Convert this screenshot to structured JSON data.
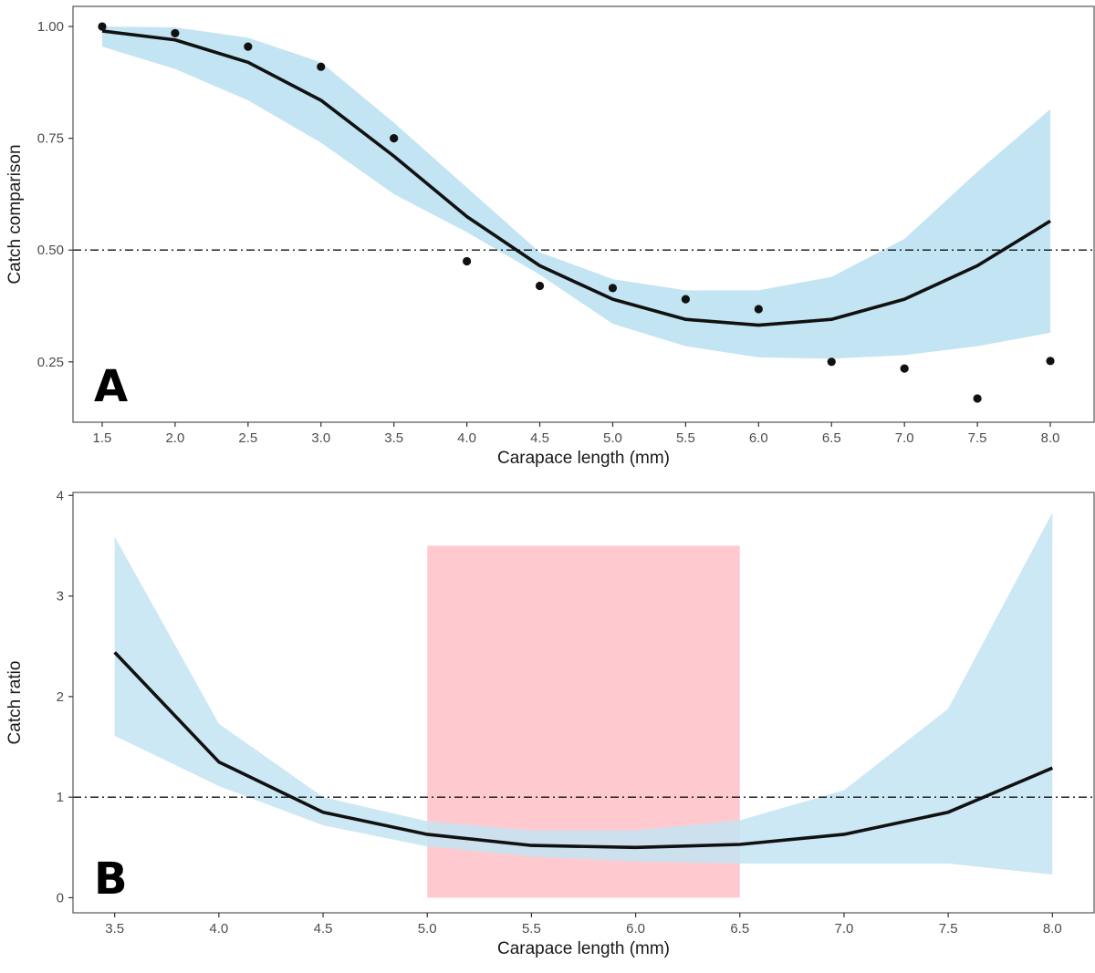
{
  "colors": {
    "ribbon": "#c3e4f2",
    "line": "#111111",
    "points": "#111111",
    "highlight": "#ffb6bd",
    "refline": "#111111",
    "frame": "#555555"
  },
  "chart_data": [
    {
      "type": "line",
      "panel_tag": "A",
      "xlabel": "Carapace length (mm)",
      "ylabel": "Catch comparison",
      "xlim": [
        1.3,
        8.3
      ],
      "ylim": [
        0.115,
        1.045
      ],
      "xticks": [
        1.5,
        2.0,
        2.5,
        3.0,
        3.5,
        4.0,
        4.5,
        5.0,
        5.5,
        6.0,
        6.5,
        7.0,
        7.5,
        8.0
      ],
      "yticks": [
        0.25,
        0.5,
        0.75,
        1.0
      ],
      "xtick_labels": [
        "1.5",
        "2.0",
        "2.5",
        "3.0",
        "3.5",
        "4.0",
        "4.5",
        "5.0",
        "5.5",
        "6.0",
        "6.5",
        "7.0",
        "7.5",
        "8.0"
      ],
      "ytick_labels": [
        "0.25",
        "0.50",
        "0.75",
        "1.00"
      ],
      "reference_line": 0.5,
      "x": [
        1.5,
        2.0,
        2.5,
        3.0,
        3.5,
        4.0,
        4.5,
        5.0,
        5.5,
        6.0,
        6.5,
        7.0,
        7.5,
        8.0
      ],
      "fit": [
        0.99,
        0.97,
        0.92,
        0.835,
        0.71,
        0.575,
        0.465,
        0.39,
        0.345,
        0.332,
        0.345,
        0.39,
        0.465,
        0.565
      ],
      "ci_lower": [
        0.955,
        0.905,
        0.835,
        0.74,
        0.625,
        0.54,
        0.445,
        0.335,
        0.285,
        0.26,
        0.257,
        0.265,
        0.285,
        0.315
      ],
      "ci_upper": [
        1.0,
        0.998,
        0.975,
        0.92,
        0.785,
        0.64,
        0.495,
        0.435,
        0.41,
        0.41,
        0.44,
        0.525,
        0.675,
        0.815
      ],
      "observed": [
        1.0,
        0.985,
        0.955,
        0.91,
        0.75,
        0.475,
        0.42,
        0.415,
        0.39,
        0.368,
        0.25,
        0.235,
        0.168,
        0.252
      ]
    },
    {
      "type": "line",
      "panel_tag": "B",
      "xlabel": "Carapace length (mm)",
      "ylabel": "Catch ratio",
      "xlim": [
        3.3,
        8.2
      ],
      "ylim": [
        -0.15,
        4.03
      ],
      "xticks": [
        3.5,
        4.0,
        4.5,
        5.0,
        5.5,
        6.0,
        6.5,
        7.0,
        7.5,
        8.0
      ],
      "yticks": [
        0,
        1,
        2,
        3,
        4
      ],
      "xtick_labels": [
        "3.5",
        "4.0",
        "4.5",
        "5.0",
        "5.5",
        "6.0",
        "6.5",
        "7.0",
        "7.5",
        "8.0"
      ],
      "ytick_labels": [
        "0",
        "1",
        "2",
        "3",
        "4"
      ],
      "reference_line": 1.0,
      "highlight_region": {
        "x_from": 5.0,
        "x_to": 6.5,
        "y_from": 0.0,
        "y_to": 3.5
      },
      "x": [
        3.5,
        4.0,
        4.5,
        5.0,
        5.5,
        6.0,
        6.5,
        7.0,
        7.5,
        8.0
      ],
      "fit": [
        2.44,
        1.35,
        0.85,
        0.63,
        0.52,
        0.5,
        0.53,
        0.63,
        0.85,
        1.29
      ],
      "ci_lower": [
        1.61,
        1.11,
        0.72,
        0.51,
        0.41,
        0.36,
        0.34,
        0.34,
        0.34,
        0.23
      ],
      "ci_upper": [
        3.59,
        1.73,
        1.0,
        0.76,
        0.67,
        0.67,
        0.77,
        1.07,
        1.88,
        3.83
      ]
    }
  ]
}
